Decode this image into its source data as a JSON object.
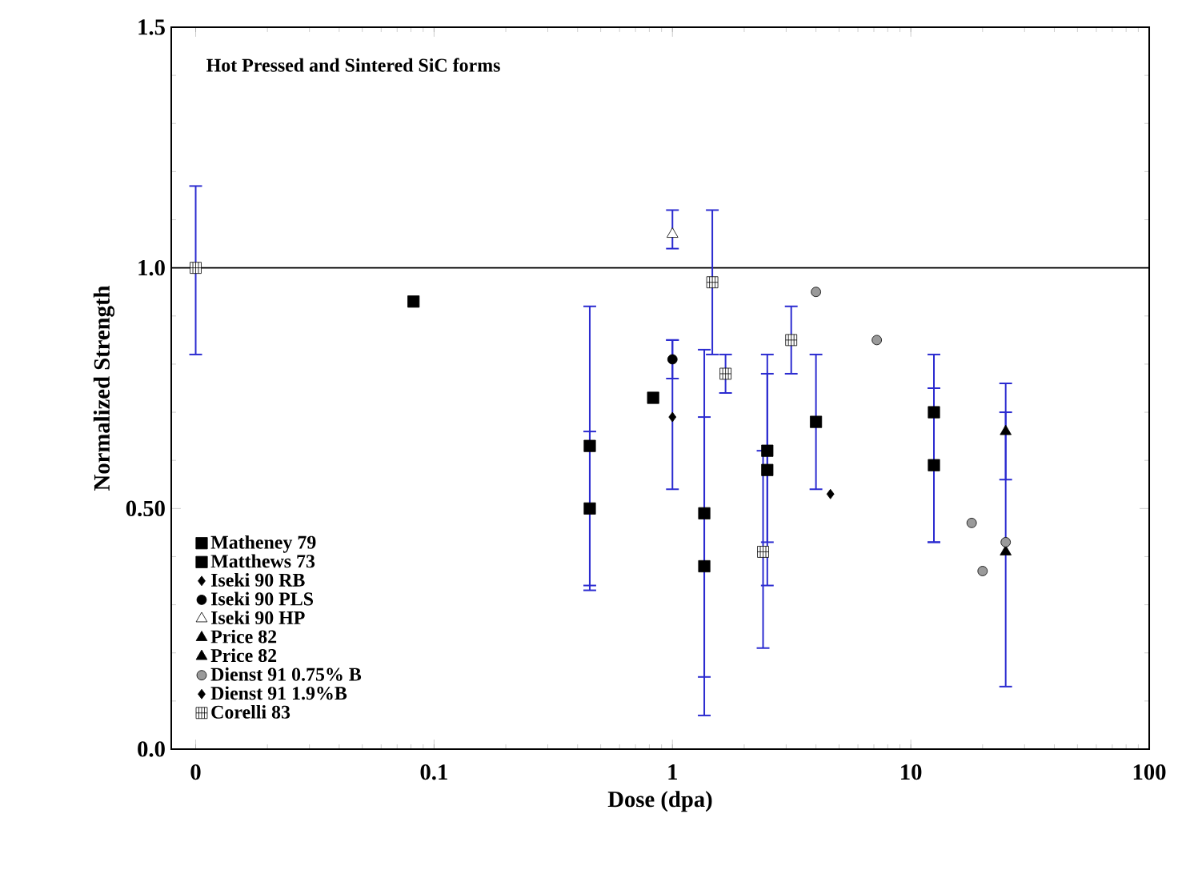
{
  "chart_data": {
    "type": "scatter",
    "xlabel": "Dose (dpa)",
    "ylabel": "Normalized Strength",
    "annotations": [
      "Hot Pressed and Sintered SiC forms"
    ],
    "log": "x",
    "xlim": [
      0.0079,
      100
    ],
    "ylim": [
      0,
      1.5
    ],
    "xticks": [
      {
        "value": 0.01,
        "label": "0"
      },
      0.1,
      1,
      10,
      100
    ],
    "yticks": [
      {
        "value": 0,
        "label": "0.0"
      },
      {
        "value": 0.5,
        "label": "0.50"
      },
      {
        "value": 1,
        "label": "1.0"
      },
      1.5
    ],
    "legend": "bottom left",
    "grid": false,
    "ref_lines": [
      {
        "axis": "y",
        "value": 1,
        "color": "#000000"
      }
    ],
    "series": [
      {
        "name": "Matheney 79",
        "marker": "square",
        "color": "#000000",
        "x": [
          0.45,
          0.45,
          1.36,
          1.36,
          2.5,
          2.5,
          4.0,
          12.5,
          12.5
        ],
        "values": [
          0.63,
          0.5,
          0.49,
          0.38,
          0.62,
          0.58,
          0.68,
          0.7,
          0.59
        ],
        "errors": [
          [
            0.33,
            0.92
          ],
          [
            0.34,
            0.66
          ],
          [
            0.07,
            0.83
          ],
          [
            0.15,
            0.69
          ],
          [
            0.34,
            0.82
          ],
          [
            0.43,
            0.78
          ],
          [
            0.54,
            0.82
          ],
          [
            0.43,
            0.82
          ],
          [
            0.43,
            0.75
          ]
        ]
      },
      {
        "name": "Matthews 73",
        "marker": "square",
        "color": "#000000",
        "x": [
          0.082,
          0.83
        ],
        "values": [
          0.93,
          0.73
        ]
      },
      {
        "name": "Iseki 90 RB",
        "marker": "diamond",
        "color": "#000000",
        "x": [
          1.0
        ],
        "values": [
          0.69
        ],
        "errors": [
          [
            0.54,
            0.85
          ]
        ]
      },
      {
        "name": "Iseki 90 PLS",
        "marker": "circle",
        "color": "#000000",
        "x": [
          1.0
        ],
        "values": [
          0.81
        ],
        "errors": [
          [
            0.77,
            0.85
          ]
        ]
      },
      {
        "name": "Iseki 90 HP",
        "marker": "triangle",
        "color": "#ffffff",
        "x": [
          1.0
        ],
        "values": [
          1.07
        ],
        "errors": [
          [
            1.04,
            1.12
          ]
        ]
      },
      {
        "name": "Price 82",
        "marker": "triangle",
        "color": "#000000",
        "x": [
          25
        ],
        "values": [
          0.66
        ],
        "errors": [
          [
            0.56,
            0.76
          ]
        ]
      },
      {
        "name": "Price 82",
        "marker": "triangle-down",
        "color": "#000000",
        "x": [
          25
        ],
        "values": [
          0.41
        ],
        "errors": [
          [
            0.13,
            0.7
          ]
        ]
      },
      {
        "name": "Dienst 91 0.75% B",
        "marker": "circle",
        "color": "#9a9a9a",
        "x": [
          4.0,
          7.2,
          18,
          20,
          25
        ],
        "values": [
          0.95,
          0.85,
          0.47,
          0.37,
          0.43
        ]
      },
      {
        "name": "Dienst 91 1.9%B",
        "marker": "diamond",
        "color": "#000000",
        "x": [
          4.6
        ],
        "values": [
          0.53
        ]
      },
      {
        "name": "Corelli 83",
        "marker": "square-cross",
        "color": "#ffffff",
        "x": [
          0.01,
          1.47,
          1.67,
          2.4,
          3.15
        ],
        "values": [
          1.0,
          0.97,
          0.78,
          0.41,
          0.85
        ],
        "errors": [
          [
            0.82,
            1.17
          ],
          [
            0.82,
            1.12
          ],
          [
            0.74,
            0.82
          ],
          [
            0.21,
            0.62
          ],
          [
            0.78,
            0.92
          ]
        ]
      }
    ]
  }
}
